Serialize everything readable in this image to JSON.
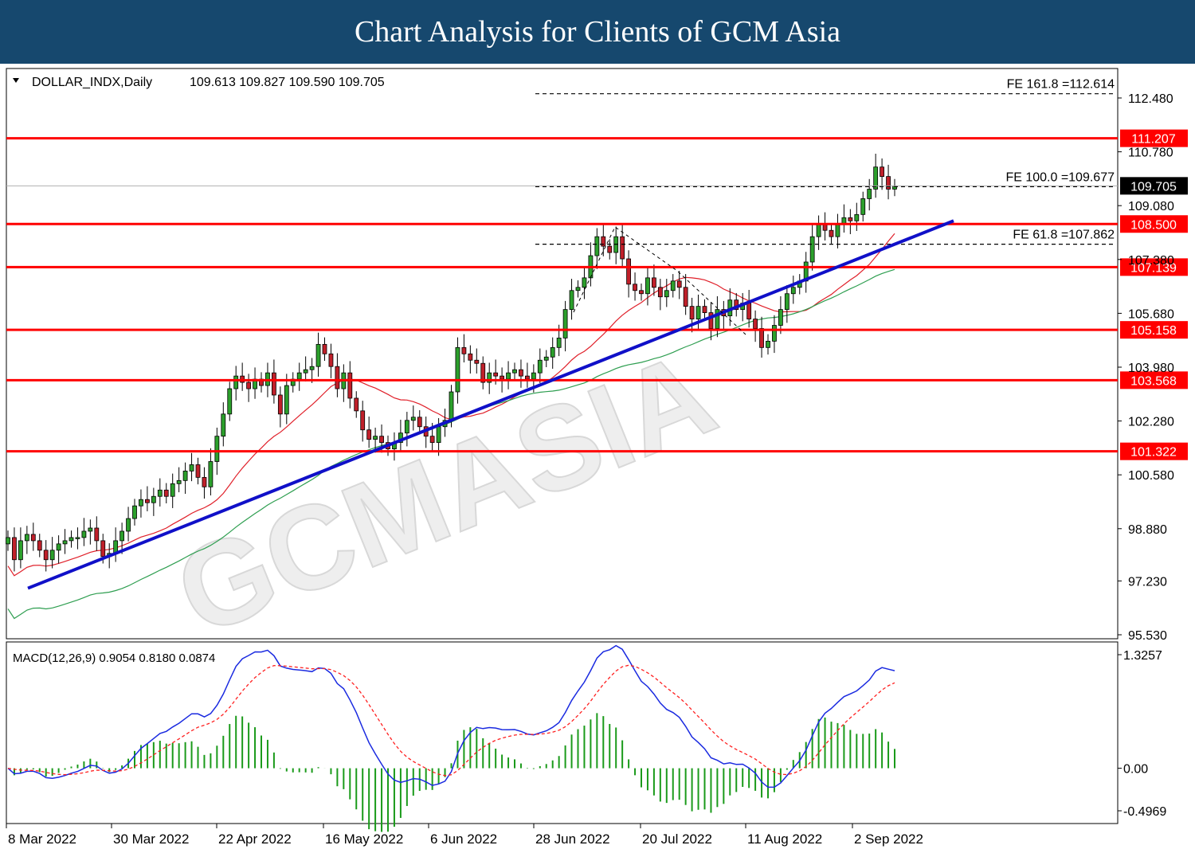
{
  "header": {
    "title": "Chart Analysis for Clients of GCM Asia"
  },
  "chart_data": {
    "type": "candlestick",
    "symbol_label": "DOLLAR_INDX,Daily",
    "ohlc_label": "109.613 109.827 109.590 109.705",
    "y_ticks": [
      "112.480",
      "110.780",
      "109.080",
      "107.380",
      "105.680",
      "103.980",
      "102.280",
      "100.580",
      "98.880",
      "97.230",
      "95.530"
    ],
    "y_range": [
      95.53,
      112.9
    ],
    "x_labels": [
      "8 Mar 2022",
      "30 Mar 2022",
      "22 Apr 2022",
      "16 May 2022",
      "6 Jun 2022",
      "28 Jun 2022",
      "20 Jul 2022",
      "11 Aug 2022",
      "2 Sep 2022"
    ],
    "current_price": {
      "value": 109.705,
      "label": "109.705"
    },
    "support_resistance": [
      {
        "value": 111.207,
        "label": "111.207"
      },
      {
        "value": 108.5,
        "label": "108.500"
      },
      {
        "value": 107.139,
        "label": "107.139"
      },
      {
        "value": 105.158,
        "label": "105.158"
      },
      {
        "value": 103.568,
        "label": "103.568"
      },
      {
        "value": 101.322,
        "label": "101.322"
      }
    ],
    "fibonacci": [
      {
        "value": 112.614,
        "label": "FE 161.8 =112.614"
      },
      {
        "value": 109.677,
        "label": "FE 100.0 =109.677"
      },
      {
        "value": 107.862,
        "label": "FE 61.8 =107.862"
      }
    ],
    "trendline": {
      "from": [
        "8 Mar 2022",
        97.0
      ],
      "to": [
        "12 Sep 2022",
        108.6
      ]
    },
    "closes": [
      98.6,
      97.9,
      98.5,
      98.7,
      98.5,
      98.2,
      97.9,
      98.2,
      98.4,
      98.5,
      98.6,
      98.6,
      98.8,
      98.9,
      98.5,
      98.0,
      98.1,
      98.5,
      98.8,
      99.2,
      99.6,
      99.8,
      99.7,
      99.9,
      100.1,
      99.9,
      100.3,
      100.4,
      100.7,
      100.9,
      100.5,
      100.2,
      101.0,
      101.8,
      102.5,
      103.3,
      103.7,
      103.5,
      103.3,
      103.6,
      103.4,
      103.8,
      103.1,
      102.5,
      103.4,
      103.6,
      103.8,
      103.9,
      104.0,
      104.7,
      104.4,
      104.0,
      103.3,
      103.8,
      103.0,
      102.6,
      102.0,
      101.7,
      101.8,
      101.6,
      101.4,
      101.6,
      101.9,
      102.3,
      102.4,
      102.1,
      101.8,
      101.6,
      102.1,
      102.3,
      103.2,
      104.6,
      104.4,
      104.2,
      104.1,
      103.5,
      103.8,
      103.7,
      103.6,
      103.8,
      103.9,
      103.7,
      103.6,
      103.8,
      104.2,
      104.3,
      104.6,
      104.9,
      105.8,
      106.4,
      106.5,
      106.8,
      107.5,
      108.1,
      107.8,
      107.6,
      108.1,
      107.4,
      106.6,
      106.4,
      106.3,
      106.8,
      106.5,
      106.2,
      106.4,
      106.7,
      106.5,
      105.9,
      105.5,
      105.9,
      105.7,
      105.2,
      105.8,
      105.6,
      106.1,
      105.8,
      106.0,
      105.5,
      105.2,
      104.6,
      104.8,
      105.3,
      105.8,
      106.3,
      106.5,
      106.7,
      107.3,
      108.1,
      108.5,
      108.3,
      108.1,
      108.5,
      108.7,
      108.6,
      108.8,
      109.3,
      109.6,
      110.3,
      110.0,
      109.6,
      109.7
    ],
    "series": [
      {
        "name": "MA20",
        "color": "#e0202a"
      },
      {
        "name": "MA50",
        "color": "#2e9e50"
      }
    ],
    "macd": {
      "label": "MACD(12,26,9) 0.9054 0.8180 0.0874",
      "ticks": [
        "1.3257",
        "0.00",
        "-0.4969"
      ],
      "y_range": [
        -0.58,
        1.42
      ]
    },
    "watermark": "GCMASIA"
  }
}
